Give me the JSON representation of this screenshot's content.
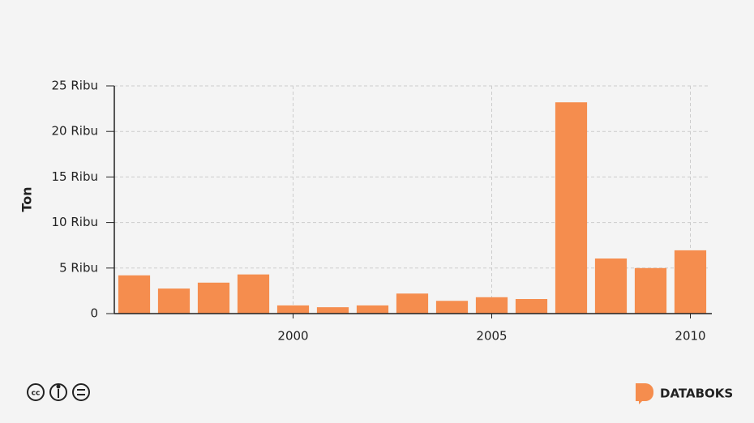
{
  "chart_data": {
    "type": "bar",
    "y_label": "Ton",
    "x": [
      1996,
      1997,
      1998,
      1999,
      2000,
      2001,
      2002,
      2003,
      2004,
      2005,
      2006,
      2007,
      2008,
      2009,
      2010
    ],
    "values": [
      4200,
      2750,
      3400,
      4300,
      900,
      700,
      900,
      2200,
      1400,
      1800,
      1600,
      23200,
      6050,
      5000,
      6950
    ],
    "color": "#f58d4e",
    "xlim": [
      1995.5,
      2010.5
    ],
    "xticks": [
      2000,
      2005,
      2010
    ],
    "ylim": [
      0,
      25000
    ],
    "yticks": [
      0,
      {
        "value": 5000,
        "label": "5 Ribu"
      },
      {
        "value": 10000,
        "label": "10 Ribu"
      },
      {
        "value": 15000,
        "label": "15 Ribu"
      },
      {
        "value": 20000,
        "label": "20 Ribu"
      },
      {
        "value": 25000,
        "label": "25 Ribu"
      }
    ],
    "grid": true
  },
  "footer": {
    "brand": "DATABOKS"
  }
}
